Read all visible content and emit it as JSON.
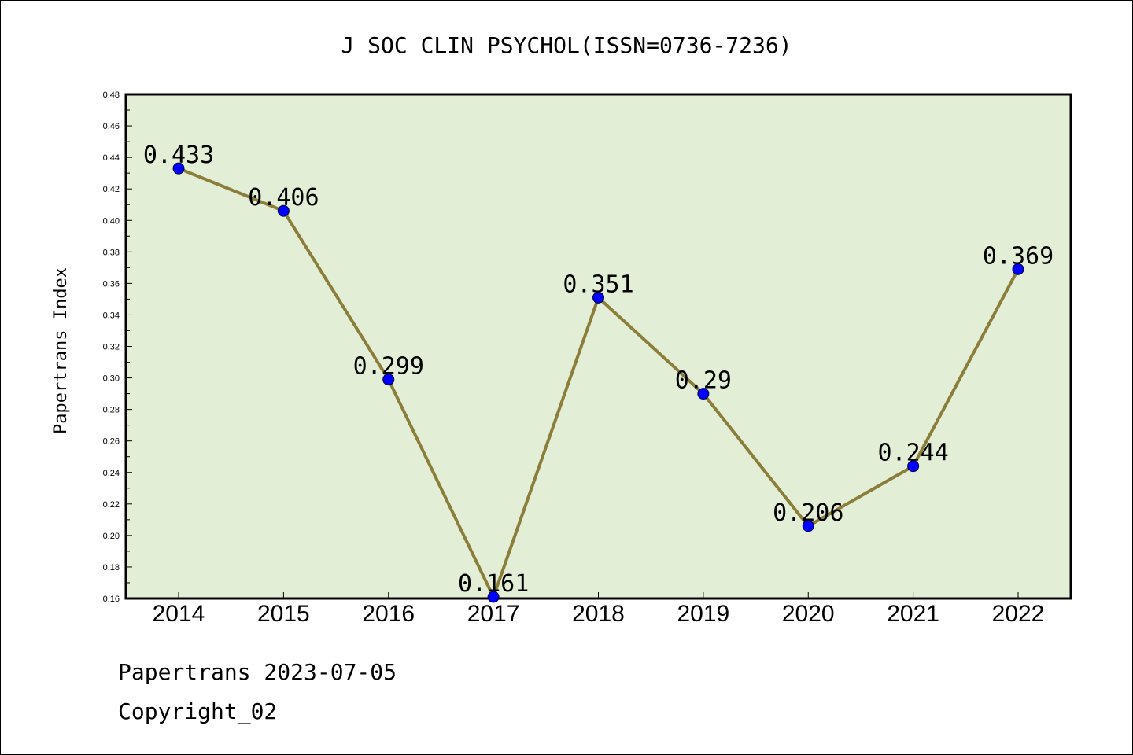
{
  "chart_data": {
    "type": "line",
    "title": "J SOC CLIN PSYCHOL(ISSN=0736-7236)",
    "ylabel": "Papertrans Index",
    "xlabel": "",
    "categories": [
      "2014",
      "2015",
      "2016",
      "2017",
      "2018",
      "2019",
      "2020",
      "2021",
      "2022"
    ],
    "values": [
      0.433,
      0.406,
      0.299,
      0.161,
      0.351,
      0.29,
      0.206,
      0.244,
      0.369
    ],
    "data_labels": [
      "0.433",
      "0.406",
      "0.299",
      "0.161",
      "0.351",
      "0.29",
      "0.206",
      "0.244",
      "0.369"
    ],
    "ylim": [
      0.16,
      0.48
    ],
    "yticks": [
      "0.16",
      "0.18",
      "0.20",
      "0.22",
      "0.24",
      "0.26",
      "0.28",
      "0.30",
      "0.32",
      "0.34",
      "0.36",
      "0.38",
      "0.40",
      "0.42",
      "0.44",
      "0.46",
      "0.48"
    ],
    "grid": false,
    "colors": {
      "plot_background": "#e2efd6",
      "line": "#8b7d3a",
      "marker": "#0000ff"
    }
  },
  "footer": {
    "line1": "Papertrans 2023-07-05",
    "line2": "Copyright_02"
  }
}
